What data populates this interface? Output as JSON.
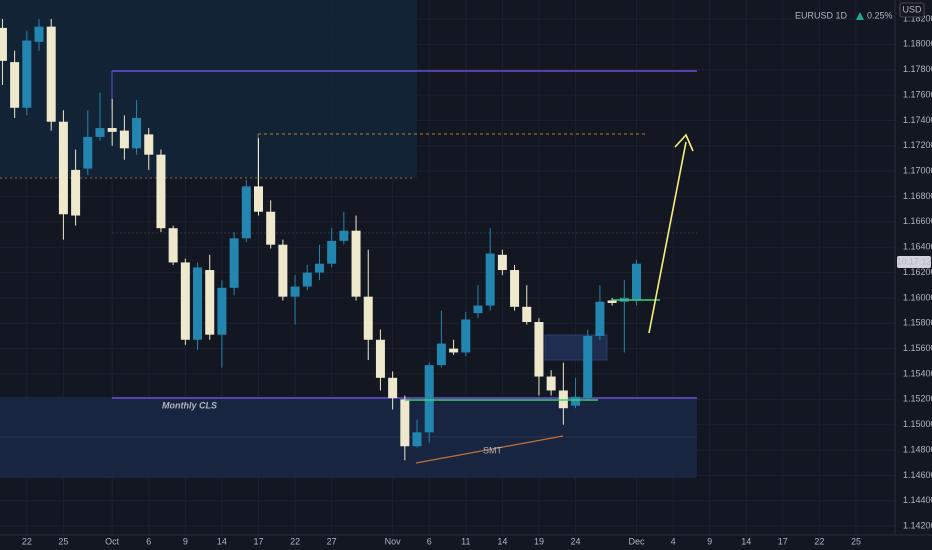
{
  "chart_data": {
    "type": "candlestick",
    "title": "EURUSD 1D",
    "change": "0.25%",
    "currency": "USD",
    "countdown": "10:17:12",
    "annotations": [
      "Monthly CLS",
      "SMT"
    ],
    "up_color": "#2386b0",
    "down_color": "#eee9cc",
    "grid": true,
    "x": [
      0,
      1,
      2,
      3,
      4,
      5,
      6,
      7,
      8,
      9,
      10,
      11,
      12,
      13,
      14,
      15,
      16,
      17,
      18,
      19,
      20,
      21,
      22,
      23,
      24,
      25,
      26,
      27,
      28,
      29,
      30,
      31,
      32,
      33,
      34,
      35,
      36,
      37,
      38,
      39,
      40,
      41,
      42,
      43,
      44,
      45,
      46,
      47,
      48,
      49,
      50,
      51,
      52
    ],
    "open": [
      1.1813,
      1.1786,
      1.175,
      1.1802,
      1.1814,
      1.1739,
      1.1701,
      1.1702,
      1.1727,
      1.1734,
      1.1732,
      1.1718,
      1.1729,
      1.1713,
      1.1655,
      1.1628,
      1.1567,
      1.1622,
      1.1571,
      1.1608,
      1.1647,
      1.1688,
      1.1668,
      1.1642,
      1.1601,
      1.1609,
      1.162,
      1.1627,
      1.1645,
      1.1653,
      1.1601,
      1.1567,
      1.1537,
      1.152,
      1.1483,
      1.1494,
      1.1547,
      1.156,
      1.1557,
      1.1588,
      1.1594,
      1.1634,
      1.1622,
      1.1593,
      1.1581,
      1.1538,
      1.1527,
      1.1515,
      1.1521,
      1.157,
      1.1598,
      1.1597,
      1.1598
    ],
    "high": [
      1.182,
      1.1795,
      1.1811,
      1.182,
      1.182,
      1.1748,
      1.1717,
      1.1748,
      1.1762,
      1.1757,
      1.1744,
      1.1756,
      1.1734,
      1.1717,
      1.1657,
      1.1631,
      1.1628,
      1.1634,
      1.1614,
      1.1652,
      1.1693,
      1.1726,
      1.1677,
      1.1646,
      1.1618,
      1.1626,
      1.1642,
      1.1655,
      1.1668,
      1.1665,
      1.1638,
      1.1575,
      1.1542,
      1.1523,
      1.1504,
      1.1549,
      1.159,
      1.1567,
      1.1589,
      1.161,
      1.1655,
      1.1638,
      1.1626,
      1.161,
      1.1584,
      1.1543,
      1.1549,
      1.1537,
      1.1575,
      1.161,
      1.16,
      1.1614,
      1.163
    ],
    "low": [
      1.1768,
      1.1742,
      1.1744,
      1.1795,
      1.1732,
      1.1646,
      1.1657,
      1.1697,
      1.1724,
      1.172,
      1.1709,
      1.1713,
      1.1701,
      1.1652,
      1.1626,
      1.1563,
      1.1559,
      1.1567,
      1.1545,
      1.1602,
      1.1644,
      1.1665,
      1.1639,
      1.1598,
      1.1579,
      1.1606,
      1.1614,
      1.1624,
      1.1642,
      1.1598,
      1.1551,
      1.1527,
      1.1512,
      1.1472,
      1.1482,
      1.1486,
      1.1545,
      1.1555,
      1.1554,
      1.1584,
      1.159,
      1.1618,
      1.159,
      1.1579,
      1.1523,
      1.1523,
      1.15,
      1.1513,
      1.152,
      1.1567,
      1.1594,
      1.1557,
      1.1594
    ],
    "close": [
      1.1787,
      1.175,
      1.1803,
      1.1814,
      1.1739,
      1.1666,
      1.1665,
      1.1727,
      1.1734,
      1.1731,
      1.1718,
      1.1742,
      1.1713,
      1.1655,
      1.1628,
      1.1567,
      1.1624,
      1.1571,
      1.1608,
      1.1647,
      1.1688,
      1.1668,
      1.1642,
      1.1601,
      1.1609,
      1.162,
      1.1627,
      1.1645,
      1.1653,
      1.1601,
      1.1567,
      1.1537,
      1.1521,
      1.1483,
      1.1494,
      1.1547,
      1.1564,
      1.1557,
      1.1583,
      1.1594,
      1.1635,
      1.1622,
      1.1593,
      1.1581,
      1.1538,
      1.1527,
      1.1513,
      1.1522,
      1.157,
      1.1597,
      1.1596,
      1.16,
      1.1627
    ],
    "xlim": [
      -0.2,
      73.2
    ],
    "ylim": [
      1.1413,
      1.1835
    ],
    "xticks": [
      {
        "value": 2,
        "label": "22"
      },
      {
        "value": 5,
        "label": "25"
      },
      {
        "value": 9,
        "label": "Oct"
      },
      {
        "value": 12,
        "label": "6"
      },
      {
        "value": 15,
        "label": "9"
      },
      {
        "value": 18,
        "label": "14"
      },
      {
        "value": 21,
        "label": "17"
      },
      {
        "value": 24,
        "label": "22"
      },
      {
        "value": 27,
        "label": "27"
      },
      {
        "value": 32,
        "label": "Nov"
      },
      {
        "value": 35,
        "label": "6"
      },
      {
        "value": 38,
        "label": "11"
      },
      {
        "value": 41,
        "label": "14"
      },
      {
        "value": 44,
        "label": "19"
      },
      {
        "value": 47,
        "label": "24"
      },
      {
        "value": 52,
        "label": "Dec"
      },
      {
        "value": 55,
        "label": "4"
      },
      {
        "value": 58,
        "label": "9"
      },
      {
        "value": 61,
        "label": "14"
      },
      {
        "value": 64,
        "label": "17"
      },
      {
        "value": 67,
        "label": "22"
      },
      {
        "value": 70,
        "label": "25"
      }
    ],
    "yticks": [
      {
        "value": 1.142,
        "label": "1.14200"
      },
      {
        "value": 1.144,
        "label": "1.14400"
      },
      {
        "value": 1.146,
        "label": "1.14600"
      },
      {
        "value": 1.148,
        "label": "1.14800"
      },
      {
        "value": 1.15,
        "label": "1.15000"
      },
      {
        "value": 1.152,
        "label": "1.15200"
      },
      {
        "value": 1.154,
        "label": "1.15400"
      },
      {
        "value": 1.156,
        "label": "1.15600"
      },
      {
        "value": 1.158,
        "label": "1.15800"
      },
      {
        "value": 1.16,
        "label": "1.16000"
      },
      {
        "value": 1.162,
        "label": "1.16200"
      },
      {
        "value": 1.164,
        "label": "1.16400"
      },
      {
        "value": 1.166,
        "label": "1.16600"
      },
      {
        "value": 1.168,
        "label": "1.16800"
      },
      {
        "value": 1.17,
        "label": "1.17000"
      },
      {
        "value": 1.172,
        "label": "1.17200"
      },
      {
        "value": 1.174,
        "label": "1.17400"
      },
      {
        "value": 1.176,
        "label": "1.17600"
      },
      {
        "value": 1.178,
        "label": "1.17800"
      },
      {
        "value": 1.18,
        "label": "1.18000"
      },
      {
        "value": 1.182,
        "label": "1.18200"
      }
    ]
  }
}
